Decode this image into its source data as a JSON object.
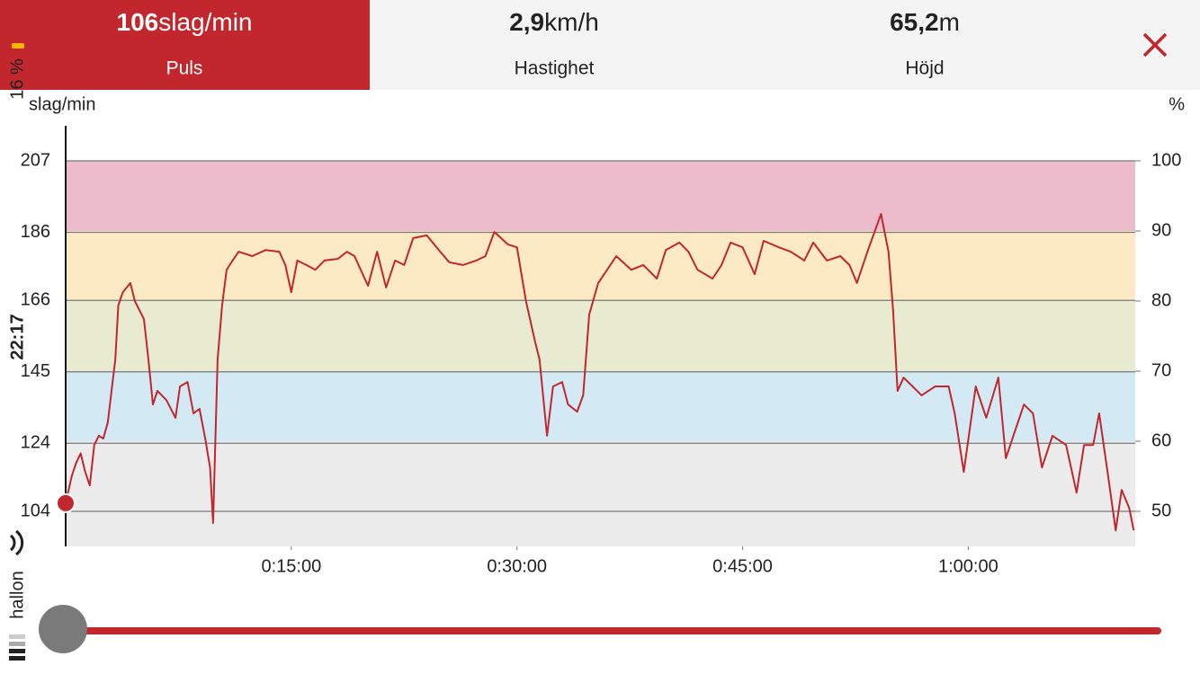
{
  "status": {
    "battery": "16 %",
    "time": "22:17",
    "carrier": "hallon"
  },
  "header": {
    "stats": [
      {
        "value": "106",
        "unit": "slag/min",
        "label": "Puls"
      },
      {
        "value": "2,9",
        "unit": "km/h",
        "label": "Hastighet"
      },
      {
        "value": "65,2",
        "unit": "m",
        "label": "Höjd"
      }
    ]
  },
  "chart_data": {
    "type": "line",
    "y_label": "slag/min",
    "y2_label": "%",
    "xlim": [
      0,
      71.1
    ],
    "xticks": [
      {
        "value": 15,
        "label": "0:15:00"
      },
      {
        "value": 30,
        "label": "0:30:00"
      },
      {
        "value": 45,
        "label": "0:45:00"
      },
      {
        "value": 60,
        "label": "1:00:00"
      }
    ],
    "ylim": [
      93.7,
      217.3
    ],
    "yticks": [
      104,
      124,
      145,
      166,
      186,
      207
    ],
    "y2lim": [
      45,
      105
    ],
    "y2ticks": [
      50,
      60,
      70,
      80,
      90,
      100
    ],
    "grid": true,
    "zones": [
      {
        "from": 90,
        "to": 100,
        "color": "#ecbccd"
      },
      {
        "from": 80,
        "to": 90,
        "color": "#fbeac3"
      },
      {
        "from": 70,
        "to": 80,
        "color": "#e8ebcf"
      },
      {
        "from": 60,
        "to": 70,
        "color": "#d3eaf5"
      },
      {
        "from": 45,
        "to": 60,
        "color": "#ececec"
      }
    ],
    "series": [
      {
        "name": "Puls",
        "color": "#c1272d",
        "x": [
          0,
          0.4,
          0.7,
          1.0,
          1.3,
          1.6,
          1.9,
          2.2,
          2.5,
          2.8,
          3.1,
          3.3,
          3.5,
          3.8,
          4.3,
          4.6,
          5.2,
          5.5,
          5.8,
          6.1,
          6.7,
          7.3,
          7.6,
          8.1,
          8.5,
          8.9,
          9.3,
          9.6,
          9.8,
          10.1,
          10.4,
          10.7,
          11.1,
          11.5,
          12.4,
          13.3,
          14.2,
          14.6,
          15.0,
          15.4,
          16.0,
          16.6,
          17.2,
          18.1,
          18.7,
          19.2,
          20.1,
          20.7,
          21.3,
          21.9,
          22.5,
          23.1,
          24.0,
          24.9,
          25.5,
          26.4,
          27.3,
          27.9,
          28.5,
          29.4,
          30.0,
          30.6,
          31.2,
          31.5,
          32.0,
          32.4,
          33.0,
          33.4,
          34.0,
          34.4,
          34.8,
          35.4,
          36.0,
          36.6,
          37.6,
          38.4,
          39.3,
          39.9,
          40.8,
          41.4,
          42.0,
          43.0,
          43.6,
          44.2,
          45.0,
          45.8,
          46.4,
          47.4,
          48.2,
          49.1,
          49.7,
          50.6,
          51.5,
          52.1,
          52.6,
          53.3,
          54.2,
          54.7,
          55.0,
          55.3,
          55.7,
          56.3,
          56.9,
          57.8,
          58.7,
          59.1,
          59.7,
          60.5,
          61.2,
          62.0,
          62.5,
          63.1,
          63.7,
          64.3,
          64.9,
          65.6,
          66.5,
          67.2,
          67.7,
          68.3,
          68.7,
          69.3,
          69.8,
          70.2,
          70.7,
          71.0
        ],
        "values": [
          106.4,
          114.3,
          118.3,
          121,
          115.6,
          111.6,
          123.5,
          126.2,
          125.4,
          130.1,
          141.2,
          148.6,
          164.5,
          168.4,
          171.1,
          165.8,
          160.5,
          148.6,
          135.4,
          139.4,
          136.7,
          131.5,
          140.7,
          142,
          132.8,
          134.1,
          124.9,
          116.9,
          100.6,
          148.6,
          164.5,
          175,
          177.7,
          180.3,
          179,
          180.8,
          180.3,
          176.4,
          168.4,
          177.7,
          176.4,
          175,
          177.7,
          178.2,
          180.3,
          179,
          170.3,
          180.3,
          169.8,
          177.7,
          176.4,
          184.3,
          185.1,
          180.3,
          177.2,
          176.4,
          177.7,
          179,
          186.1,
          182.4,
          181.6,
          165.8,
          153.9,
          148.6,
          126.2,
          140.7,
          142,
          135.4,
          133.3,
          138.1,
          161.8,
          171.1,
          175,
          179,
          175,
          176.4,
          172.4,
          180.8,
          183,
          180.3,
          175,
          172.4,
          176.4,
          183,
          181.6,
          173.7,
          183.5,
          181.6,
          180.3,
          177.7,
          183,
          177.7,
          179,
          176.4,
          171.1,
          180.3,
          191.4,
          180.3,
          163.2,
          139.4,
          143.3,
          140.7,
          138.1,
          140.7,
          140.7,
          132.8,
          115.6,
          140.7,
          131.5,
          143.3,
          119.6,
          127.5,
          135.4,
          132.8,
          116.9,
          126.2,
          123.5,
          109.5,
          123.5,
          123.5,
          132.8,
          114.3,
          98.4,
          110.3,
          105,
          98.4
        ]
      }
    ]
  }
}
